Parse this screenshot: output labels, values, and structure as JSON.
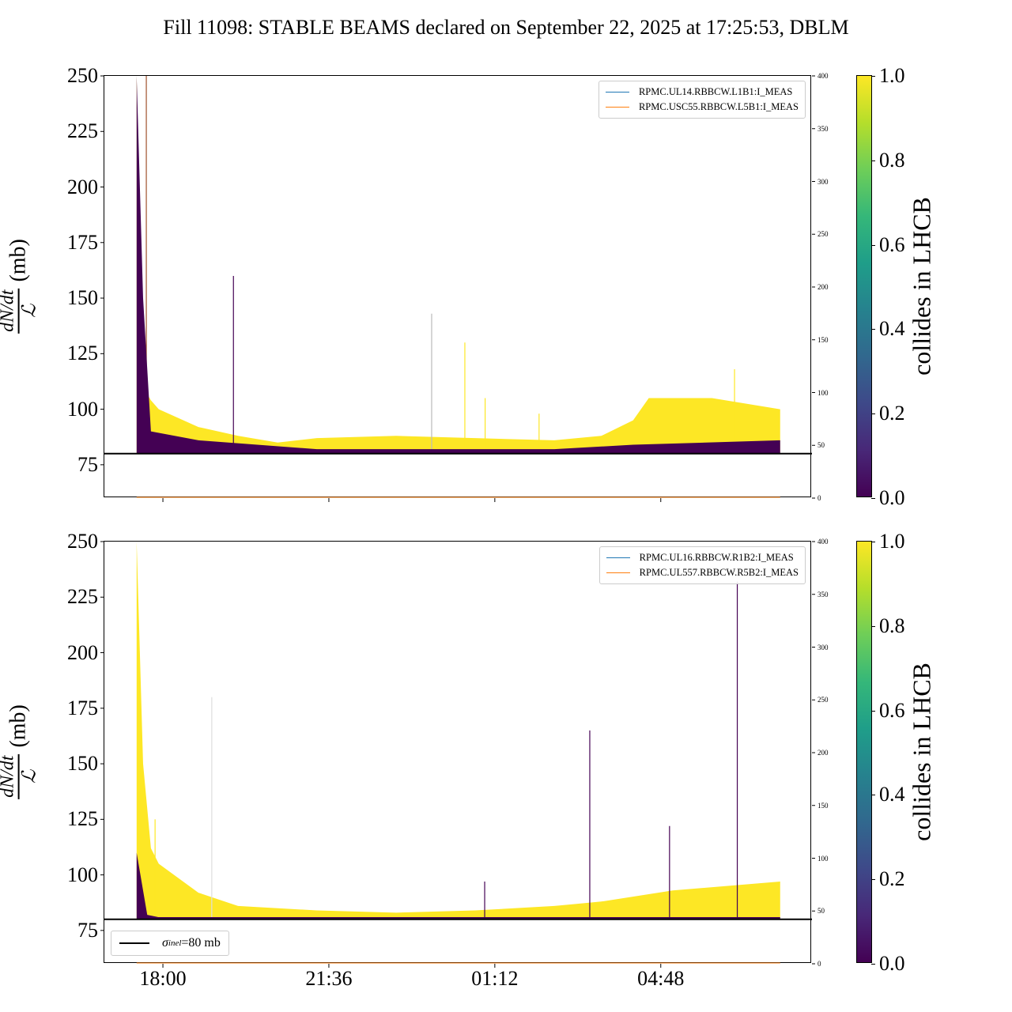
{
  "title": "Fill 11098: STABLE BEAMS declared on September 22, 2025 at 17:25:53, DBLM",
  "chart_data": [
    {
      "type": "area",
      "panel": "top",
      "ylabel_num": "dN/dt",
      "ylabel_den": "ℒ",
      "ylabel_unit": "(mb)",
      "ylim": [
        60,
        250
      ],
      "yticks": [
        "75",
        "100",
        "125",
        "150",
        "175",
        "200",
        "225",
        "250"
      ],
      "y2lim": [
        0,
        400
      ],
      "y2ticks": [
        "0",
        "50",
        "100",
        "150",
        "200",
        "250",
        "300",
        "350",
        "400"
      ],
      "xlim_hours": [
        16.73,
        32.08
      ],
      "xticks": [
        {
          "label": "18:00",
          "h": 18
        },
        {
          "label": "21:36",
          "h": 21.6
        },
        {
          "label": "01:12",
          "h": 25.2
        },
        {
          "label": "04:48",
          "h": 28.8
        }
      ],
      "show_xtick_labels": false,
      "reference_line": 80,
      "legend": [
        "RPMC.UL14.RBBCW.L1B1:I_MEAS",
        "RPMC.USC55.RBBCW.L5B1:I_MEAS"
      ],
      "legend_colors": [
        "#1f77b4",
        "#ff7f0e"
      ],
      "legend_placement": "top-right",
      "colliding_upper": {
        "h": [
          17.43,
          17.57,
          17.74,
          17.91,
          18.77,
          19.63,
          20.49,
          21.34,
          23.06,
          24.77,
          26.49,
          27.51,
          28.2,
          28.54,
          29.91,
          31.39
        ],
        "v": [
          250,
          110,
          104,
          100,
          92,
          88,
          85,
          87,
          88,
          87,
          86,
          88,
          95,
          105,
          105,
          100
        ]
      },
      "noncolliding_upper": {
        "h": [
          17.43,
          17.57,
          17.74,
          18.77,
          21.34,
          26.49,
          28.2,
          31.39
        ],
        "v": [
          250,
          150,
          90,
          86,
          82,
          82,
          84,
          86
        ]
      },
      "spikes": [
        {
          "h": 17.64,
          "v": 250,
          "color": "#a0522d"
        },
        {
          "h": 19.53,
          "v": 160,
          "color": "#440154"
        },
        {
          "h": 23.83,
          "v": 143,
          "color": "#bbbbbb"
        },
        {
          "h": 24.55,
          "v": 130,
          "color": "#fde725"
        },
        {
          "h": 24.99,
          "v": 105,
          "color": "#fde725"
        },
        {
          "h": 26.16,
          "v": 98,
          "color": "#fde725"
        },
        {
          "h": 30.4,
          "v": 118,
          "color": "#fde725"
        }
      ]
    },
    {
      "type": "area",
      "panel": "bottom",
      "ylabel_num": "dN/dt",
      "ylabel_den": "ℒ",
      "ylabel_unit": "(mb)",
      "ylim": [
        60,
        250
      ],
      "yticks": [
        "75",
        "100",
        "125",
        "150",
        "175",
        "200",
        "225",
        "250"
      ],
      "y2lim": [
        0,
        400
      ],
      "y2ticks": [
        "0",
        "50",
        "100",
        "150",
        "200",
        "250",
        "300",
        "350",
        "400"
      ],
      "xlim_hours": [
        16.73,
        32.08
      ],
      "xticks": [
        {
          "label": "18:00",
          "h": 18
        },
        {
          "label": "21:36",
          "h": 21.6
        },
        {
          "label": "01:12",
          "h": 25.2
        },
        {
          "label": "04:48",
          "h": 28.8
        }
      ],
      "show_xtick_labels": true,
      "reference_line": 80,
      "legend": [
        "RPMC.UL16.RBBCW.R1B2:I_MEAS",
        "RPMC.UL557.RBBCW.R5B2:I_MEAS"
      ],
      "legend_colors": [
        "#1f77b4",
        "#ff7f0e"
      ],
      "legend_placement": "top-right",
      "ref_legend_label": "=80 mb",
      "ref_legend_symbol": "σ",
      "ref_legend_sub": "inel",
      "colliding_upper": {
        "h": [
          17.43,
          17.57,
          17.74,
          17.91,
          18.77,
          19.63,
          21.34,
          23.06,
          24.77,
          26.49,
          27.51,
          29.06,
          31.39
        ],
        "v": [
          250,
          150,
          112,
          105,
          92,
          86,
          84,
          83,
          84,
          86,
          88,
          93,
          97
        ]
      },
      "noncolliding_upper": {
        "h": [
          17.43,
          17.66,
          17.9,
          31.39
        ],
        "v": [
          110,
          82,
          81,
          81
        ]
      },
      "spikes": [
        {
          "h": 17.83,
          "v": 125,
          "color": "#fde725"
        },
        {
          "h": 19.06,
          "v": 180,
          "color": "#dddddd"
        },
        {
          "h": 24.98,
          "v": 97,
          "color": "#440154"
        },
        {
          "h": 27.26,
          "v": 165,
          "color": "#440154"
        },
        {
          "h": 28.99,
          "v": 122,
          "color": "#440154"
        },
        {
          "h": 30.46,
          "v": 232,
          "color": "#440154"
        }
      ]
    }
  ],
  "colorbar": {
    "label": "collides in LHCB",
    "ticks": [
      "0.0",
      "0.2",
      "0.4",
      "0.6",
      "0.8",
      "1.0"
    ],
    "range": [
      0,
      1
    ]
  }
}
